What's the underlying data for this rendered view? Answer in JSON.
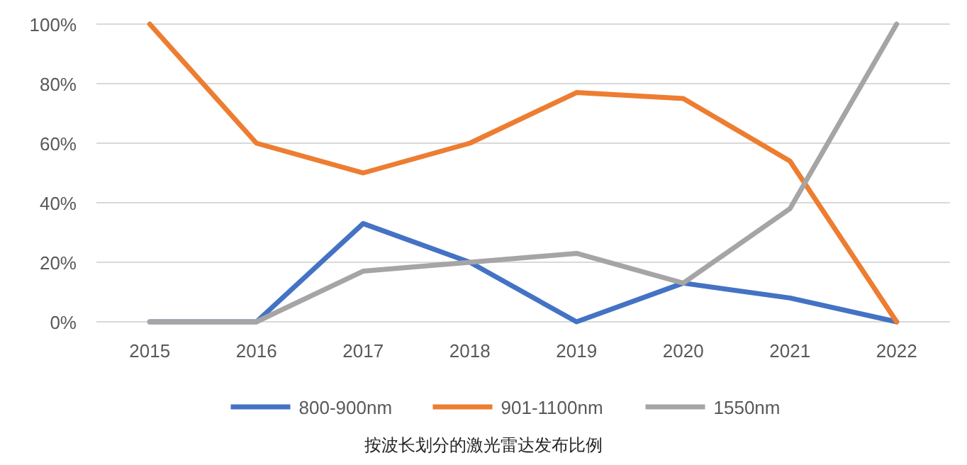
{
  "chart_data": {
    "type": "line",
    "categories": [
      "2015",
      "2016",
      "2017",
      "2018",
      "2019",
      "2020",
      "2021",
      "2022"
    ],
    "series": [
      {
        "name": "800-900nm",
        "color": "#4472c4",
        "values": [
          0,
          0,
          33,
          20,
          0,
          13,
          8,
          0
        ]
      },
      {
        "name": "901-1100nm",
        "color": "#ed7d31",
        "values": [
          100,
          60,
          50,
          60,
          77,
          75,
          54,
          0
        ]
      },
      {
        "name": "1550nm",
        "color": "#a5a5a5",
        "values": [
          0,
          0,
          17,
          20,
          23,
          13,
          38,
          100
        ]
      }
    ],
    "ylim": [
      0,
      100
    ],
    "yticks": [
      {
        "value": 0,
        "label": "0%"
      },
      {
        "value": 20,
        "label": "20%"
      },
      {
        "value": 40,
        "label": "40%"
      },
      {
        "value": 60,
        "label": "60%"
      },
      {
        "value": 80,
        "label": "80%"
      },
      {
        "value": 100,
        "label": "100%"
      }
    ],
    "grid": "y",
    "legend": "bottom",
    "annotations": [
      "按波长划分的激光雷达发布比例"
    ]
  }
}
